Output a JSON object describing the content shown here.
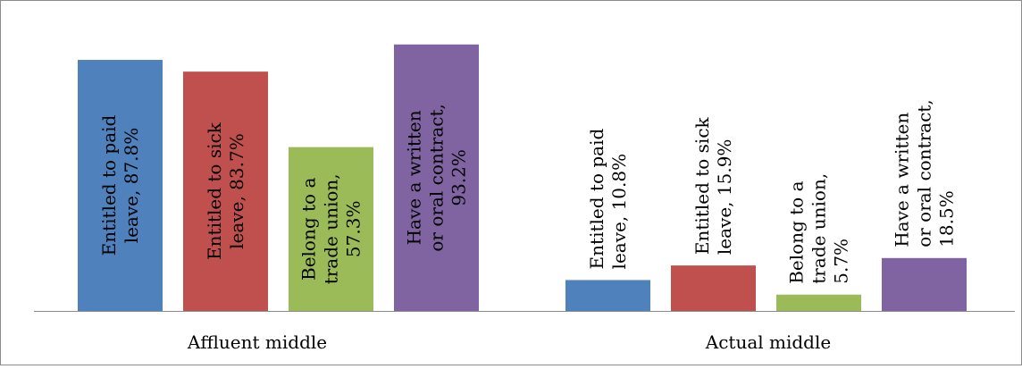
{
  "chart_data": {
    "type": "bar",
    "categories": [
      "Affluent middle",
      "Actual middle"
    ],
    "series": [
      {
        "label_lines": [
          "Entitled to paid",
          "leave, 87.8%"
        ],
        "value": 87.8,
        "category": 0,
        "color": "#4f81bd"
      },
      {
        "label_lines": [
          "Entitled to sick",
          "leave, 83.7%"
        ],
        "value": 83.7,
        "category": 0,
        "color": "#c0504d"
      },
      {
        "label_lines": [
          "Belong to a",
          "trade union,",
          "57.3%"
        ],
        "value": 57.3,
        "category": 0,
        "color": "#9bbb59"
      },
      {
        "label_lines": [
          "Have a written",
          "or oral contract,",
          "93.2%"
        ],
        "value": 93.2,
        "category": 0,
        "color": "#8064a2"
      },
      {
        "label_lines": [
          "Entitled to paid",
          "leave, 10.8%"
        ],
        "value": 10.8,
        "category": 1,
        "color": "#4f81bd"
      },
      {
        "label_lines": [
          "Entitled to sick",
          "leave, 15.9%"
        ],
        "value": 15.9,
        "category": 1,
        "color": "#c0504d"
      },
      {
        "label_lines": [
          "Belong to a",
          "trade union,",
          "5.7%"
        ],
        "value": 5.7,
        "category": 1,
        "color": "#9bbb59"
      },
      {
        "label_lines": [
          "Have a written",
          "or oral contract,",
          "18.5%"
        ],
        "value": 18.5,
        "category": 1,
        "color": "#8064a2"
      }
    ],
    "ylim": [
      0,
      100
    ],
    "grid": false,
    "legend": "none"
  }
}
